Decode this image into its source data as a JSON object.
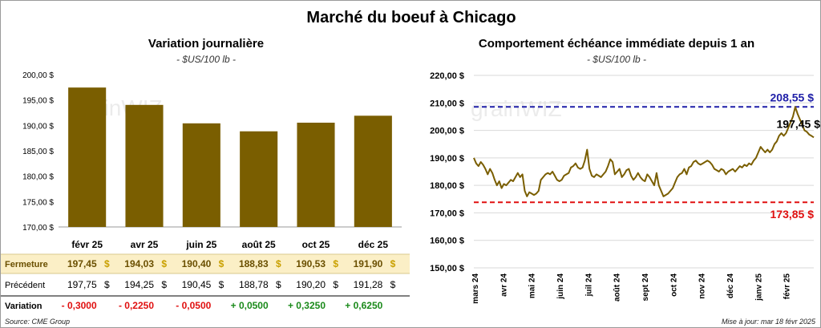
{
  "title": "Marché du boeuf à Chicago",
  "footer": {
    "source": "Source: CME Group",
    "update": "Mise à jour: mar 18 févr 2025"
  },
  "watermark": "grainWIZ",
  "colors": {
    "bar": "#7a5e00",
    "line": "#7a5e00",
    "high": "#1f1fa8",
    "low": "#e01010",
    "neg": "#e01010",
    "pos": "#1a8a1a",
    "table_highlight": "#fbefc6"
  },
  "chart_data": [
    {
      "type": "bar",
      "title": "Variation journalière",
      "subtitle": "- $US/100 lb -",
      "categories": [
        "févr 25",
        "avr 25",
        "juin 25",
        "août 25",
        "oct 25",
        "déc 25"
      ],
      "values": [
        197.45,
        194.03,
        190.4,
        188.83,
        190.53,
        191.9
      ],
      "ylim": [
        170,
        200
      ],
      "yticks": [
        {
          "v": 170,
          "label": "170,00 $"
        },
        {
          "v": 175,
          "label": "175,00 $"
        },
        {
          "v": 180,
          "label": "180,00 $"
        },
        {
          "v": 185,
          "label": "185,00 $"
        },
        {
          "v": 190,
          "label": "190,00 $"
        },
        {
          "v": 195,
          "label": "195,00 $"
        },
        {
          "v": 200,
          "label": "200,00 $"
        }
      ],
      "grid": false
    },
    {
      "type": "line",
      "title": "Comportement échéance immédiate depuis 1 an",
      "subtitle": "- $US/100 lb -",
      "ylim": [
        150,
        220
      ],
      "yticks": [
        {
          "v": 150,
          "label": "150,00 $"
        },
        {
          "v": 160,
          "label": "160,00 $"
        },
        {
          "v": 170,
          "label": "170,00 $"
        },
        {
          "v": 180,
          "label": "180,00 $"
        },
        {
          "v": 190,
          "label": "190,00 $"
        },
        {
          "v": 200,
          "label": "200,00 $"
        },
        {
          "v": 210,
          "label": "210,00 $"
        },
        {
          "v": 220,
          "label": "220,00 $"
        }
      ],
      "x_ticks": [
        "mars 24",
        "avr 24",
        "mai 24",
        "juin 24",
        "juil 24",
        "août 24",
        "sept 24",
        "oct 24",
        "nov 24",
        "déc 24",
        "janv 25",
        "févr 25"
      ],
      "grid": true,
      "high": {
        "value": 208.55,
        "label": "208,55 $"
      },
      "low": {
        "value": 173.85,
        "label": "173,85 $"
      },
      "last": {
        "value": 197.45,
        "label": "197,45 $"
      },
      "series": [
        {
          "values": [
            190.0,
            188.0,
            187.0,
            188.5,
            187.5,
            186.0,
            184.0,
            186.0,
            184.5,
            182.0,
            180.0,
            181.5,
            179.0,
            180.5,
            180.0,
            181.0,
            182.0,
            181.5,
            183.0,
            184.5,
            183.0,
            184.0,
            178.0,
            176.0,
            177.5,
            177.0,
            176.5,
            177.0,
            178.0,
            182.0,
            183.0,
            184.0,
            184.5,
            184.0,
            185.0,
            183.5,
            182.0,
            181.5,
            182.0,
            183.5,
            184.0,
            184.5,
            186.5,
            187.0,
            188.0,
            186.5,
            186.0,
            186.5,
            189.0,
            193.0,
            186.0,
            183.5,
            183.0,
            184.0,
            183.5,
            183.0,
            184.0,
            185.0,
            187.0,
            189.5,
            188.5,
            184.0,
            185.0,
            186.0,
            183.0,
            184.0,
            185.5,
            186.0,
            183.5,
            182.0,
            183.0,
            184.5,
            183.0,
            182.0,
            181.5,
            184.0,
            183.0,
            181.5,
            180.0,
            184.5,
            180.0,
            178.0,
            176.0,
            176.5,
            177.0,
            178.0,
            179.0,
            181.0,
            183.0,
            184.0,
            184.5,
            186.0,
            184.0,
            186.5,
            187.0,
            188.5,
            189.0,
            188.0,
            187.5,
            188.0,
            188.5,
            189.0,
            188.5,
            187.5,
            186.0,
            185.5,
            185.0,
            186.0,
            185.5,
            184.0,
            185.0,
            185.5,
            186.0,
            185.0,
            186.0,
            187.0,
            186.5,
            187.5,
            187.0,
            188.0,
            187.5,
            189.0,
            190.0,
            192.0,
            194.0,
            193.0,
            192.0,
            193.0,
            192.0,
            193.0,
            195.0,
            196.0,
            198.0,
            199.0,
            198.0,
            199.0,
            201.0,
            203.0,
            205.0,
            208.55,
            206.0,
            204.0,
            202.0,
            200.0,
            199.5,
            198.5,
            198.0,
            197.45
          ]
        }
      ]
    }
  ],
  "table": {
    "rows": [
      {
        "label": "Fermeture",
        "cells": [
          "197,45",
          "194,03",
          "190,40",
          "188,83",
          "190,53",
          "191,90"
        ],
        "suffix": "$"
      },
      {
        "label": "Précédent",
        "cells": [
          "197,75",
          "194,25",
          "190,45",
          "188,78",
          "190,20",
          "191,28"
        ],
        "suffix": "$"
      },
      {
        "label": "Variation",
        "cells": [
          "- 0,3000",
          "- 0,2250",
          "- 0,0500",
          "+ 0,0500",
          "+ 0,3250",
          "+ 0,6250"
        ]
      }
    ]
  }
}
